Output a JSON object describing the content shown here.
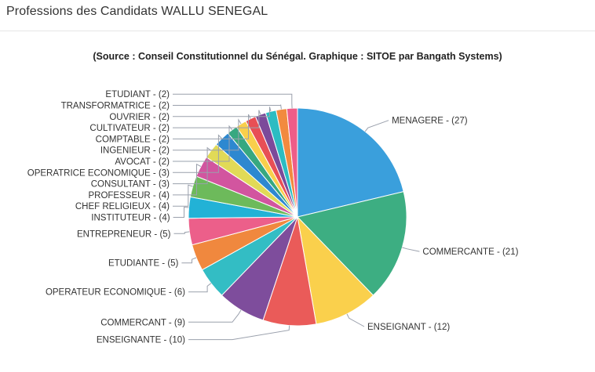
{
  "page": {
    "title": "Professions des Candidats WALLU SENEGAL"
  },
  "chart_data": {
    "type": "pie",
    "title": "",
    "subtitle": "(Source : Conseil Constitutionnel du Sénégal. Graphique : SITOE par Bangath Systems)",
    "legend": "none",
    "slices": [
      {
        "label": "MENAGERE",
        "value": 27,
        "color": "#3A9FDC"
      },
      {
        "label": "COMMERCANTE",
        "value": 21,
        "color": "#3DAE82"
      },
      {
        "label": "ENSEIGNANT",
        "value": 12,
        "color": "#FAD04C"
      },
      {
        "label": "ENSEIGNANTE",
        "value": 10,
        "color": "#EA5B59"
      },
      {
        "label": "COMMERCANT",
        "value": 9,
        "color": "#7E4D9C"
      },
      {
        "label": "OPERATEUR ECONOMIQUE",
        "value": 6,
        "color": "#33BDC4"
      },
      {
        "label": "ETUDIANTE",
        "value": 5,
        "color": "#F0883E"
      },
      {
        "label": "ENTREPRENEUR",
        "value": 5,
        "color": "#EC5F8A"
      },
      {
        "label": "INSTITUTEUR",
        "value": 4,
        "color": "#22B2D6"
      },
      {
        "label": "CHEF RELIGIEUX",
        "value": 4,
        "color": "#6DBA5B"
      },
      {
        "label": "PROFESSEUR",
        "value": 4,
        "color": "#D2559F"
      },
      {
        "label": "CONSULTANT",
        "value": 3,
        "color": "#E1DA57"
      },
      {
        "label": "OPERATRICE ECONOMIQUE",
        "value": 3,
        "color": "#2D88D0"
      },
      {
        "label": "AVOCAT",
        "value": 2,
        "color": "#37A880"
      },
      {
        "label": "INGENIEUR",
        "value": 2,
        "color": "#F9CF4B"
      },
      {
        "label": "COMPTABLE",
        "value": 2,
        "color": "#E84F55"
      },
      {
        "label": "CULTIVATEUR",
        "value": 2,
        "color": "#7C4A9A"
      },
      {
        "label": "OUVRIER",
        "value": 2,
        "color": "#2CBCC2"
      },
      {
        "label": "TRANSFORMATRICE",
        "value": 2,
        "color": "#F28A3F"
      },
      {
        "label": "ETUDIANT",
        "value": 2,
        "color": "#EE5D88"
      }
    ]
  }
}
